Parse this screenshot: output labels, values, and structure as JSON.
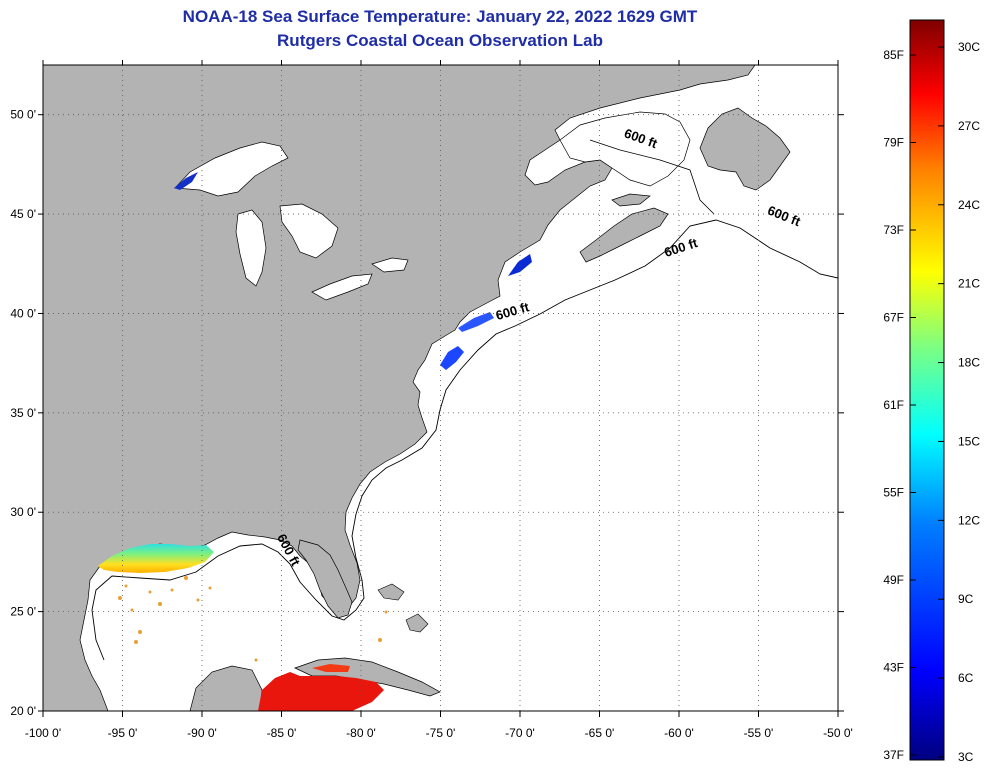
{
  "title": {
    "line1": "NOAA-18 Sea Surface Temperature:  January 22, 2022 1629 GMT",
    "line2": "Rutgers Coastal Ocean Observation Lab"
  },
  "map": {
    "lon_range": [
      -100,
      -50
    ],
    "lat_range": [
      20,
      52.5
    ],
    "x_ticks": [
      {
        "lon": -100,
        "label": "-100 0'"
      },
      {
        "lon": -95,
        "label": "-95 0'"
      },
      {
        "lon": -90,
        "label": "-90 0'"
      },
      {
        "lon": -85,
        "label": "-85 0'"
      },
      {
        "lon": -80,
        "label": "-80 0'"
      },
      {
        "lon": -75,
        "label": "-75 0'"
      },
      {
        "lon": -70,
        "label": "-70 0'"
      },
      {
        "lon": -65,
        "label": "-65 0'"
      },
      {
        "lon": -60,
        "label": "-60 0'"
      },
      {
        "lon": -55,
        "label": "-55 0'"
      },
      {
        "lon": -50,
        "label": "-50 0'"
      }
    ],
    "y_ticks": [
      {
        "lat": 50,
        "label": "50 0'"
      },
      {
        "lat": 45,
        "label": "45 0'"
      },
      {
        "lat": 40,
        "label": "40 0'"
      },
      {
        "lat": 35,
        "label": "35 0'"
      },
      {
        "lat": 30,
        "label": "30 0'"
      },
      {
        "lat": 25,
        "label": "25 0'"
      },
      {
        "lat": 20,
        "label": "20 0'"
      }
    ],
    "land_color": "#b3b3b3",
    "ocean_color": "#ffffff",
    "grid": "dotted",
    "isobath_labels": [
      {
        "text": "600 ft",
        "lon": -62.5,
        "lat": 48.6,
        "angle": 20
      },
      {
        "text": "600 ft",
        "lon": -53.5,
        "lat": 44.7,
        "angle": 22
      },
      {
        "text": "600 ft",
        "lon": -59.8,
        "lat": 43.1,
        "angle": -18
      },
      {
        "text": "600 ft",
        "lon": -70.4,
        "lat": 39.9,
        "angle": -16
      },
      {
        "text": "600 ft",
        "lon": -84.8,
        "lat": 28.0,
        "angle": 62
      }
    ]
  },
  "colorbar": {
    "ticks_f": [
      "85F",
      "79F",
      "73F",
      "67F",
      "61F",
      "55F",
      "49F",
      "43F",
      "37F"
    ],
    "ticks_c": [
      "30C",
      "27C",
      "24C",
      "21C",
      "18C",
      "15C",
      "12C",
      "9C",
      "6C",
      "3C"
    ],
    "range_c": [
      3,
      31
    ],
    "colors": [
      "#00007f",
      "#0000ff",
      "#007fff",
      "#00ffff",
      "#7fff7f",
      "#ffff00",
      "#ff7f00",
      "#ff0000",
      "#7f0000"
    ]
  },
  "sst_patches": [
    {
      "name": "gulf-warm-band",
      "temp_c": 22,
      "color": "#ffd21a"
    },
    {
      "name": "gulf-cool-shelf",
      "temp_c": 14,
      "color": "#3fe0c8"
    },
    {
      "name": "caribbean-warm",
      "temp_c": 27,
      "color": "#e8160c"
    },
    {
      "name": "mid-atlantic-cold",
      "temp_c": 6,
      "color": "#1c46ff"
    },
    {
      "name": "gulf-maine-cold",
      "temp_c": 5,
      "color": "#0a2ad6"
    },
    {
      "name": "lake-superior-cold",
      "temp_c": 4,
      "color": "#1330c8"
    }
  ]
}
